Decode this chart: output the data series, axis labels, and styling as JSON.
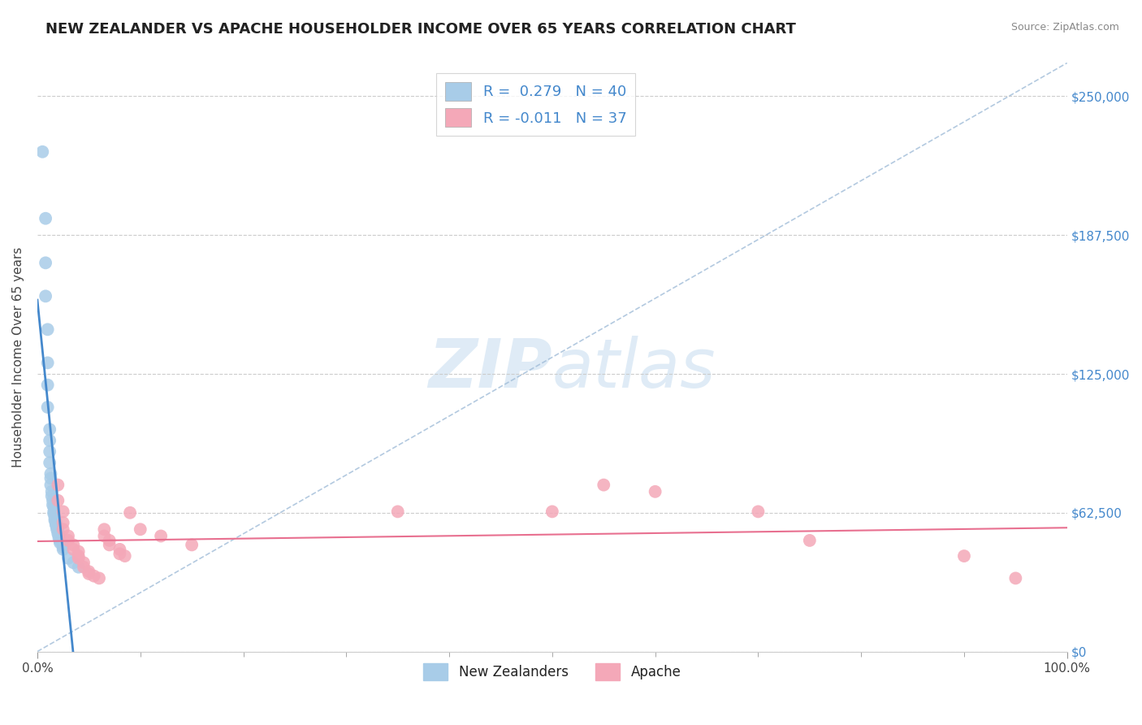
{
  "title": "NEW ZEALANDER VS APACHE HOUSEHOLDER INCOME OVER 65 YEARS CORRELATION CHART",
  "source": "Source: ZipAtlas.com",
  "ylabel": "Householder Income Over 65 years",
  "xlim": [
    0.0,
    1.0
  ],
  "ylim": [
    0,
    265000
  ],
  "yticks": [
    0,
    62500,
    125000,
    187500,
    250000
  ],
  "ytick_labels": [
    "$0",
    "$62,500",
    "$125,000",
    "$187,500",
    "$250,000"
  ],
  "xtick_labels": [
    "0.0%",
    "100.0%"
  ],
  "legend_nz_r": "R =  0.279",
  "legend_nz_n": "N = 40",
  "legend_ap_r": "R = -0.011",
  "legend_ap_n": "N = 37",
  "nz_color": "#a8cce8",
  "ap_color": "#f4a8b8",
  "nz_line_color": "#4488cc",
  "ap_line_color": "#e87090",
  "nz_scatter": [
    [
      0.005,
      225000
    ],
    [
      0.008,
      195000
    ],
    [
      0.008,
      175000
    ],
    [
      0.008,
      160000
    ],
    [
      0.01,
      145000
    ],
    [
      0.01,
      130000
    ],
    [
      0.01,
      120000
    ],
    [
      0.01,
      110000
    ],
    [
      0.012,
      100000
    ],
    [
      0.012,
      95000
    ],
    [
      0.012,
      90000
    ],
    [
      0.012,
      85000
    ],
    [
      0.013,
      80000
    ],
    [
      0.013,
      78000
    ],
    [
      0.013,
      75000
    ],
    [
      0.014,
      72000
    ],
    [
      0.014,
      70000
    ],
    [
      0.015,
      68000
    ],
    [
      0.015,
      66000
    ],
    [
      0.016,
      65000
    ],
    [
      0.016,
      63000
    ],
    [
      0.016,
      62000
    ],
    [
      0.017,
      60000
    ],
    [
      0.017,
      59000
    ],
    [
      0.018,
      58000
    ],
    [
      0.018,
      57000
    ],
    [
      0.019,
      56000
    ],
    [
      0.019,
      55000
    ],
    [
      0.02,
      54000
    ],
    [
      0.02,
      53000
    ],
    [
      0.021,
      52000
    ],
    [
      0.021,
      51000
    ],
    [
      0.022,
      50000
    ],
    [
      0.022,
      49000
    ],
    [
      0.025,
      48000
    ],
    [
      0.025,
      47000
    ],
    [
      0.025,
      46000
    ],
    [
      0.03,
      42000
    ],
    [
      0.035,
      40000
    ],
    [
      0.04,
      38000
    ]
  ],
  "ap_scatter": [
    [
      0.02,
      75000
    ],
    [
      0.02,
      68000
    ],
    [
      0.025,
      63000
    ],
    [
      0.025,
      58000
    ],
    [
      0.025,
      55000
    ],
    [
      0.03,
      52000
    ],
    [
      0.03,
      50000
    ],
    [
      0.035,
      48000
    ],
    [
      0.035,
      46000
    ],
    [
      0.04,
      45000
    ],
    [
      0.04,
      43000
    ],
    [
      0.04,
      42000
    ],
    [
      0.045,
      40000
    ],
    [
      0.045,
      38000
    ],
    [
      0.05,
      36000
    ],
    [
      0.05,
      35000
    ],
    [
      0.055,
      34000
    ],
    [
      0.06,
      33000
    ],
    [
      0.065,
      55000
    ],
    [
      0.065,
      52000
    ],
    [
      0.07,
      50000
    ],
    [
      0.07,
      48000
    ],
    [
      0.08,
      46000
    ],
    [
      0.08,
      44000
    ],
    [
      0.085,
      43000
    ],
    [
      0.09,
      62500
    ],
    [
      0.1,
      55000
    ],
    [
      0.12,
      52000
    ],
    [
      0.15,
      48000
    ],
    [
      0.35,
      63000
    ],
    [
      0.5,
      63000
    ],
    [
      0.55,
      75000
    ],
    [
      0.6,
      72000
    ],
    [
      0.7,
      63000
    ],
    [
      0.75,
      50000
    ],
    [
      0.9,
      43000
    ],
    [
      0.95,
      33000
    ]
  ],
  "background_color": "#ffffff",
  "grid_color": "#cccccc",
  "watermark_zip": "ZIP",
  "watermark_atlas": "atlas",
  "title_fontsize": 13,
  "axis_fontsize": 11,
  "legend_fontsize": 13,
  "right_label_color": "#4488cc",
  "diag_line_color": "#a0bcd8"
}
